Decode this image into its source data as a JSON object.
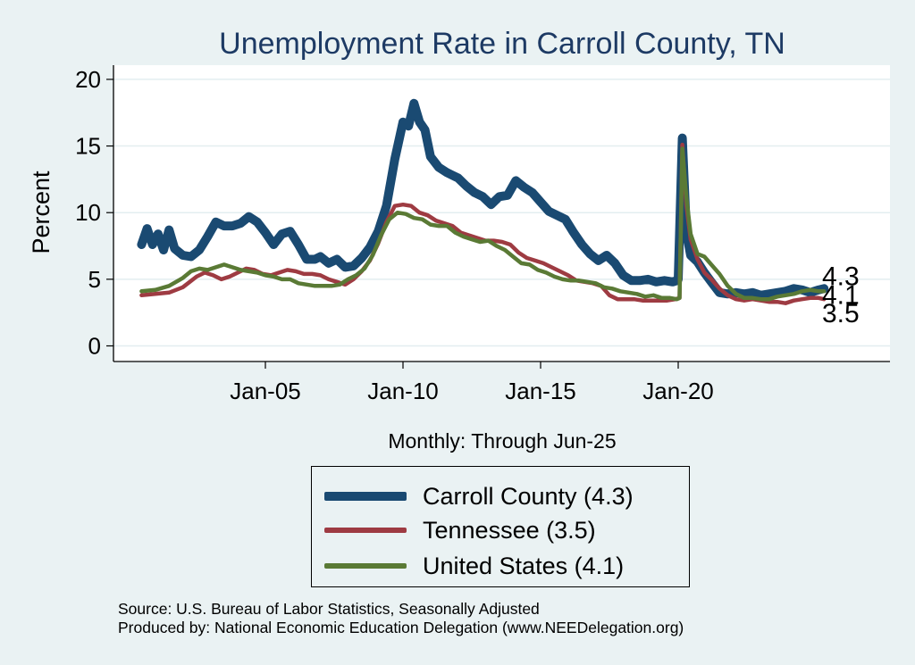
{
  "chart_data": {
    "type": "line",
    "title": "Unemployment Rate in Carroll  County, TN",
    "ylabel": "Percent",
    "xlabel": "Monthly: Through Jun-25",
    "ylim": [
      0,
      20
    ],
    "yticks": [
      0,
      5,
      10,
      15,
      20
    ],
    "x_range": [
      2000.0,
      2027.83
    ],
    "xticks": [
      {
        "value": 2005.0,
        "label": "Jan-05"
      },
      {
        "value": 2010.0,
        "label": "Jan-10"
      },
      {
        "value": 2015.0,
        "label": "Jan-15"
      },
      {
        "value": 2020.0,
        "label": "Jan-20"
      }
    ],
    "grid": true,
    "series": [
      {
        "name": "Carroll  County",
        "legend": "Carroll  County (4.3)",
        "color": "#1a4a72",
        "end_label": "4.3",
        "points": [
          [
            2000.5,
            7.6
          ],
          [
            2000.7,
            8.8
          ],
          [
            2000.9,
            7.6
          ],
          [
            2001.1,
            8.4
          ],
          [
            2001.3,
            7.2
          ],
          [
            2001.5,
            8.7
          ],
          [
            2001.7,
            7.3
          ],
          [
            2002.0,
            6.8
          ],
          [
            2002.3,
            6.7
          ],
          [
            2002.6,
            7.2
          ],
          [
            2002.9,
            8.2
          ],
          [
            2003.2,
            9.3
          ],
          [
            2003.5,
            9.0
          ],
          [
            2003.8,
            9.0
          ],
          [
            2004.1,
            9.2
          ],
          [
            2004.4,
            9.7
          ],
          [
            2004.7,
            9.3
          ],
          [
            2005.0,
            8.5
          ],
          [
            2005.3,
            7.6
          ],
          [
            2005.6,
            8.4
          ],
          [
            2005.9,
            8.6
          ],
          [
            2006.2,
            7.6
          ],
          [
            2006.5,
            6.5
          ],
          [
            2006.8,
            6.5
          ],
          [
            2007.0,
            6.7
          ],
          [
            2007.3,
            6.2
          ],
          [
            2007.6,
            6.5
          ],
          [
            2007.9,
            5.9
          ],
          [
            2008.2,
            6.0
          ],
          [
            2008.5,
            6.6
          ],
          [
            2008.8,
            7.4
          ],
          [
            2009.1,
            8.6
          ],
          [
            2009.4,
            10.5
          ],
          [
            2009.7,
            14.0
          ],
          [
            2010.0,
            16.8
          ],
          [
            2010.2,
            16.5
          ],
          [
            2010.4,
            18.2
          ],
          [
            2010.6,
            16.8
          ],
          [
            2010.8,
            16.2
          ],
          [
            2011.0,
            14.2
          ],
          [
            2011.3,
            13.4
          ],
          [
            2011.6,
            13.0
          ],
          [
            2012.0,
            12.6
          ],
          [
            2012.3,
            12.0
          ],
          [
            2012.6,
            11.5
          ],
          [
            2012.9,
            11.2
          ],
          [
            2013.2,
            10.6
          ],
          [
            2013.5,
            11.2
          ],
          [
            2013.8,
            11.3
          ],
          [
            2014.1,
            12.4
          ],
          [
            2014.4,
            11.9
          ],
          [
            2014.7,
            11.5
          ],
          [
            2015.0,
            10.8
          ],
          [
            2015.3,
            10.1
          ],
          [
            2015.6,
            9.8
          ],
          [
            2015.9,
            9.5
          ],
          [
            2016.2,
            8.5
          ],
          [
            2016.5,
            7.6
          ],
          [
            2016.8,
            6.9
          ],
          [
            2017.1,
            6.4
          ],
          [
            2017.4,
            6.8
          ],
          [
            2017.7,
            6.2
          ],
          [
            2018.0,
            5.3
          ],
          [
            2018.3,
            4.9
          ],
          [
            2018.6,
            4.9
          ],
          [
            2018.9,
            5.0
          ],
          [
            2019.2,
            4.8
          ],
          [
            2019.5,
            4.9
          ],
          [
            2019.8,
            4.8
          ],
          [
            2019.95,
            4.9
          ],
          [
            2020.0,
            5.0
          ],
          [
            2020.15,
            15.6
          ],
          [
            2020.3,
            8.5
          ],
          [
            2020.45,
            6.8
          ],
          [
            2020.7,
            6.3
          ],
          [
            2020.95,
            5.5
          ],
          [
            2021.2,
            4.8
          ],
          [
            2021.5,
            4.0
          ],
          [
            2021.8,
            3.9
          ],
          [
            2022.1,
            4.0
          ],
          [
            2022.4,
            3.9
          ],
          [
            2022.7,
            4.0
          ],
          [
            2023.0,
            3.8
          ],
          [
            2023.3,
            3.9
          ],
          [
            2023.6,
            4.0
          ],
          [
            2023.9,
            4.1
          ],
          [
            2024.2,
            4.3
          ],
          [
            2024.5,
            4.2
          ],
          [
            2024.8,
            4.0
          ],
          [
            2025.1,
            4.2
          ],
          [
            2025.3,
            4.3
          ]
        ]
      },
      {
        "name": "Tennessee",
        "legend": "Tennessee (3.5)",
        "color": "#9e3b42",
        "end_label": "3.5",
        "points": [
          [
            2000.5,
            3.8
          ],
          [
            2001.0,
            3.9
          ],
          [
            2001.5,
            4.0
          ],
          [
            2002.0,
            4.4
          ],
          [
            2002.5,
            5.2
          ],
          [
            2002.8,
            5.5
          ],
          [
            2003.1,
            5.3
          ],
          [
            2003.4,
            5.0
          ],
          [
            2003.7,
            5.2
          ],
          [
            2004.0,
            5.5
          ],
          [
            2004.3,
            5.8
          ],
          [
            2004.6,
            5.7
          ],
          [
            2004.9,
            5.4
          ],
          [
            2005.2,
            5.3
          ],
          [
            2005.5,
            5.5
          ],
          [
            2005.8,
            5.7
          ],
          [
            2006.1,
            5.6
          ],
          [
            2006.4,
            5.4
          ],
          [
            2006.7,
            5.4
          ],
          [
            2007.0,
            5.3
          ],
          [
            2007.3,
            5.0
          ],
          [
            2007.6,
            4.8
          ],
          [
            2007.9,
            4.6
          ],
          [
            2008.2,
            5.0
          ],
          [
            2008.5,
            5.6
          ],
          [
            2008.8,
            6.4
          ],
          [
            2009.1,
            7.7
          ],
          [
            2009.4,
            9.3
          ],
          [
            2009.7,
            10.5
          ],
          [
            2010.0,
            10.6
          ],
          [
            2010.3,
            10.5
          ],
          [
            2010.6,
            10.0
          ],
          [
            2010.9,
            9.8
          ],
          [
            2011.2,
            9.4
          ],
          [
            2011.5,
            9.2
          ],
          [
            2011.8,
            9.0
          ],
          [
            2012.1,
            8.5
          ],
          [
            2012.4,
            8.3
          ],
          [
            2012.7,
            8.1
          ],
          [
            2013.0,
            7.9
          ],
          [
            2013.3,
            7.9
          ],
          [
            2013.6,
            7.8
          ],
          [
            2013.9,
            7.6
          ],
          [
            2014.2,
            7.0
          ],
          [
            2014.5,
            6.6
          ],
          [
            2014.8,
            6.4
          ],
          [
            2015.1,
            6.2
          ],
          [
            2015.4,
            5.9
          ],
          [
            2015.7,
            5.6
          ],
          [
            2016.0,
            5.3
          ],
          [
            2016.3,
            4.9
          ],
          [
            2016.6,
            4.8
          ],
          [
            2016.9,
            4.7
          ],
          [
            2017.2,
            4.5
          ],
          [
            2017.5,
            3.8
          ],
          [
            2017.8,
            3.5
          ],
          [
            2018.1,
            3.5
          ],
          [
            2018.4,
            3.5
          ],
          [
            2018.7,
            3.4
          ],
          [
            2019.0,
            3.4
          ],
          [
            2019.3,
            3.4
          ],
          [
            2019.6,
            3.4
          ],
          [
            2019.9,
            3.5
          ],
          [
            2020.05,
            3.6
          ],
          [
            2020.15,
            15.1
          ],
          [
            2020.3,
            10.5
          ],
          [
            2020.45,
            8.0
          ],
          [
            2020.7,
            6.5
          ],
          [
            2020.95,
            5.5
          ],
          [
            2021.2,
            5.0
          ],
          [
            2021.5,
            4.3
          ],
          [
            2021.8,
            3.8
          ],
          [
            2022.1,
            3.5
          ],
          [
            2022.4,
            3.4
          ],
          [
            2022.7,
            3.5
          ],
          [
            2023.0,
            3.4
          ],
          [
            2023.3,
            3.3
          ],
          [
            2023.6,
            3.3
          ],
          [
            2023.9,
            3.2
          ],
          [
            2024.2,
            3.4
          ],
          [
            2024.5,
            3.5
          ],
          [
            2024.8,
            3.6
          ],
          [
            2025.1,
            3.6
          ],
          [
            2025.3,
            3.5
          ]
        ]
      },
      {
        "name": "United States",
        "legend": "United States (4.1)",
        "color": "#5a7a35",
        "end_label": "4.1",
        "points": [
          [
            2000.5,
            4.1
          ],
          [
            2001.0,
            4.2
          ],
          [
            2001.5,
            4.5
          ],
          [
            2002.0,
            5.1
          ],
          [
            2002.3,
            5.6
          ],
          [
            2002.6,
            5.8
          ],
          [
            2002.9,
            5.7
          ],
          [
            2003.2,
            5.9
          ],
          [
            2003.5,
            6.1
          ],
          [
            2003.8,
            5.9
          ],
          [
            2004.1,
            5.7
          ],
          [
            2004.4,
            5.6
          ],
          [
            2004.7,
            5.5
          ],
          [
            2005.0,
            5.3
          ],
          [
            2005.3,
            5.2
          ],
          [
            2005.6,
            5.0
          ],
          [
            2005.9,
            5.0
          ],
          [
            2006.2,
            4.7
          ],
          [
            2006.5,
            4.6
          ],
          [
            2006.8,
            4.5
          ],
          [
            2007.1,
            4.5
          ],
          [
            2007.4,
            4.5
          ],
          [
            2007.7,
            4.6
          ],
          [
            2008.0,
            5.0
          ],
          [
            2008.3,
            5.3
          ],
          [
            2008.6,
            5.8
          ],
          [
            2008.9,
            6.8
          ],
          [
            2009.2,
            8.3
          ],
          [
            2009.5,
            9.5
          ],
          [
            2009.8,
            10.0
          ],
          [
            2010.1,
            9.9
          ],
          [
            2010.4,
            9.6
          ],
          [
            2010.7,
            9.5
          ],
          [
            2011.0,
            9.1
          ],
          [
            2011.3,
            9.0
          ],
          [
            2011.6,
            9.0
          ],
          [
            2011.9,
            8.5
          ],
          [
            2012.2,
            8.2
          ],
          [
            2012.5,
            8.0
          ],
          [
            2012.8,
            7.8
          ],
          [
            2013.1,
            7.9
          ],
          [
            2013.4,
            7.5
          ],
          [
            2013.7,
            7.2
          ],
          [
            2014.0,
            6.7
          ],
          [
            2014.3,
            6.2
          ],
          [
            2014.6,
            6.1
          ],
          [
            2014.9,
            5.7
          ],
          [
            2015.2,
            5.5
          ],
          [
            2015.5,
            5.2
          ],
          [
            2015.8,
            5.0
          ],
          [
            2016.1,
            4.9
          ],
          [
            2016.4,
            4.9
          ],
          [
            2016.7,
            4.8
          ],
          [
            2017.0,
            4.7
          ],
          [
            2017.3,
            4.4
          ],
          [
            2017.6,
            4.3
          ],
          [
            2017.9,
            4.1
          ],
          [
            2018.2,
            4.0
          ],
          [
            2018.5,
            3.9
          ],
          [
            2018.8,
            3.7
          ],
          [
            2019.1,
            3.8
          ],
          [
            2019.4,
            3.6
          ],
          [
            2019.7,
            3.6
          ],
          [
            2019.95,
            3.5
          ],
          [
            2020.05,
            3.6
          ],
          [
            2020.15,
            14.8
          ],
          [
            2020.3,
            11.1
          ],
          [
            2020.45,
            8.4
          ],
          [
            2020.7,
            6.9
          ],
          [
            2020.95,
            6.7
          ],
          [
            2021.2,
            6.1
          ],
          [
            2021.5,
            5.4
          ],
          [
            2021.8,
            4.5
          ],
          [
            2022.1,
            3.9
          ],
          [
            2022.4,
            3.6
          ],
          [
            2022.7,
            3.6
          ],
          [
            2023.0,
            3.5
          ],
          [
            2023.3,
            3.5
          ],
          [
            2023.6,
            3.7
          ],
          [
            2023.9,
            3.8
          ],
          [
            2024.2,
            3.9
          ],
          [
            2024.5,
            4.1
          ],
          [
            2024.8,
            4.2
          ],
          [
            2025.1,
            4.1
          ],
          [
            2025.3,
            4.1
          ]
        ]
      }
    ]
  },
  "source": {
    "line1": "Source: U.S. Bureau of Labor Statistics, Seasonally Adjusted",
    "line2": "Produced by: National Economic Education Delegation (www.NEEDelegation.org)"
  }
}
